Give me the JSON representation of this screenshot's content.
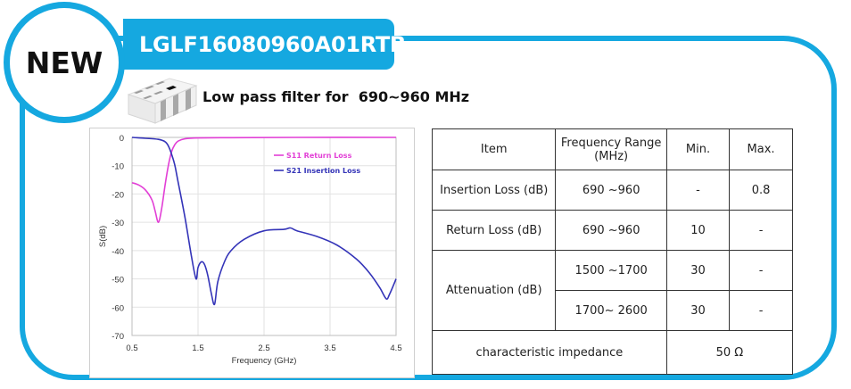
{
  "badge": {
    "label": "NEW"
  },
  "product": {
    "part_number": "LGLF16080960A01RTB",
    "description": "Low pass filter for  690~960 MHz",
    "image_icon": "smd-chip-component-icon"
  },
  "colors": {
    "frame": "#15a8e0",
    "s11": "#e23fd6",
    "s21": "#3434b8"
  },
  "chart_data": {
    "type": "line",
    "title": "",
    "xlabel": "Frequency (GHz)",
    "ylabel": "S(dB)",
    "xlim": [
      0.5,
      4.5
    ],
    "ylim": [
      -70,
      0
    ],
    "xticks": [
      "0.5",
      "1.5",
      "2.5",
      "3.5",
      "4.5"
    ],
    "yticks": [
      "0",
      "-10",
      "-20",
      "-30",
      "-40",
      "-50",
      "-60",
      "-70"
    ],
    "grid": true,
    "legend_position": "upper right",
    "series": [
      {
        "name": "S11 Return Loss",
        "color": "#e23fd6",
        "x": [
          0.5,
          0.6,
          0.7,
          0.8,
          0.85,
          0.9,
          0.95,
          1.0,
          1.05,
          1.1,
          1.15,
          1.2,
          1.3,
          1.5,
          2.0,
          3.0,
          4.5
        ],
        "y": [
          -16,
          -16.8,
          -18.5,
          -22,
          -26,
          -30,
          -25,
          -17,
          -10,
          -5,
          -2.5,
          -1.3,
          -0.5,
          -0.2,
          -0.1,
          0,
          0
        ]
      },
      {
        "name": "S21 Insertion Loss",
        "color": "#3434b8",
        "x": [
          0.5,
          0.7,
          0.9,
          1.0,
          1.05,
          1.1,
          1.15,
          1.2,
          1.3,
          1.4,
          1.47,
          1.5,
          1.55,
          1.6,
          1.65,
          1.7,
          1.75,
          1.8,
          1.9,
          2.0,
          2.2,
          2.5,
          2.8,
          2.9,
          3.0,
          3.3,
          3.6,
          3.9,
          4.1,
          4.25,
          4.35,
          4.4,
          4.5
        ],
        "y": [
          0,
          -0.3,
          -0.7,
          -1.5,
          -3,
          -6,
          -10,
          -16,
          -28,
          -42,
          -50,
          -46,
          -44,
          -45,
          -49,
          -55,
          -59,
          -51,
          -44,
          -40,
          -36,
          -33,
          -32.5,
          -32,
          -33,
          -35,
          -38,
          -43,
          -48,
          -53,
          -57,
          -55.5,
          -50
        ]
      }
    ]
  },
  "table": {
    "headers": [
      "Item",
      "Frequency Range\n(MHz)",
      "Min.",
      "Max."
    ],
    "header_line1": "Frequency Range",
    "header_line2": "(MHz)",
    "rows": [
      {
        "item": "Insertion Loss (dB)",
        "range": "690 ~960",
        "min": "-",
        "max": "0.8"
      },
      {
        "item": "Return Loss (dB)",
        "range": "690 ~960",
        "min": "10",
        "max": "-"
      },
      {
        "item": "Attenuation (dB)",
        "range": "1500 ~1700",
        "min": "30",
        "max": "-"
      },
      {
        "item": "Attenuation (dB)",
        "range": "1700~ 2600",
        "min": "30",
        "max": "-"
      }
    ],
    "impedance": {
      "label": "characteristic impedance",
      "value": "50 Ω"
    }
  }
}
